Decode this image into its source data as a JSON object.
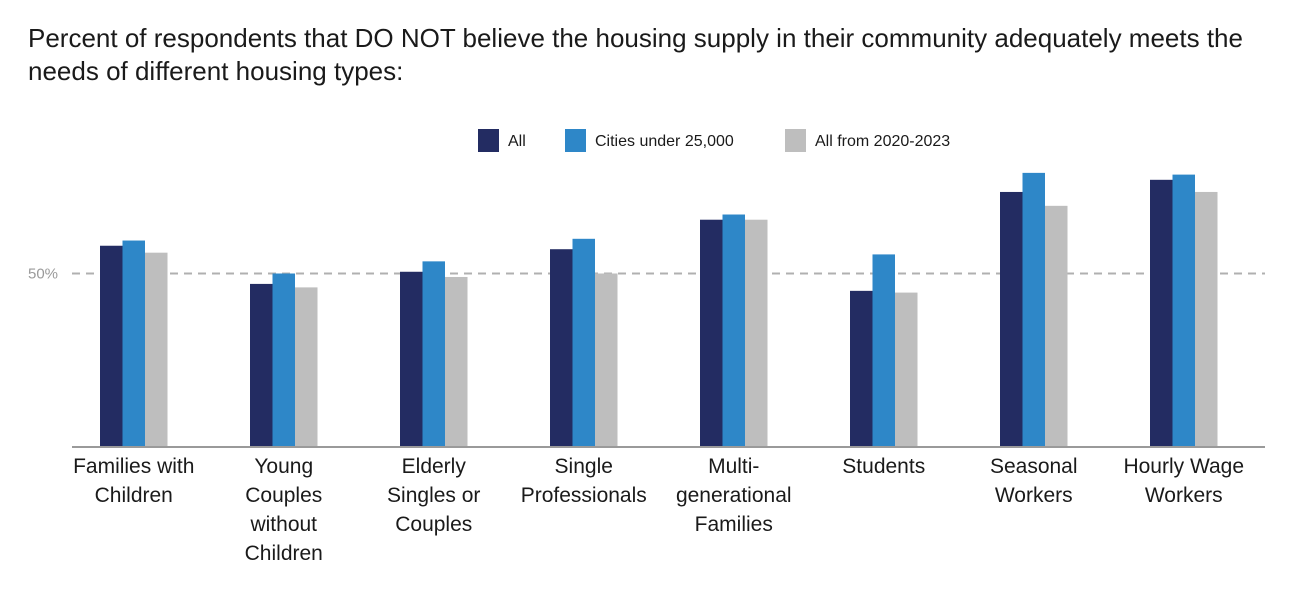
{
  "title": "Percent of respondents that DO NOT believe the housing supply in their community adequately meets the needs of different housing types:",
  "chart_data": {
    "type": "bar",
    "title": "Percent of respondents that DO NOT believe the housing supply in their community adequately meets the needs of different housing types:",
    "categories": [
      [
        "Families with",
        "Children"
      ],
      [
        "Young",
        "Couples",
        "without",
        "Children"
      ],
      [
        "Elderly",
        "Singles or",
        "Couples"
      ],
      [
        "Single",
        "Professionals"
      ],
      [
        "Multi-",
        "generational",
        "Families"
      ],
      [
        "Students"
      ],
      [
        "Seasonal",
        "Workers"
      ],
      [
        "Hourly Wage",
        "Workers"
      ]
    ],
    "series": [
      {
        "name": "All",
        "color": "#232c62",
        "values": [
          58,
          47,
          50.5,
          57,
          65.5,
          45,
          73.5,
          77
        ]
      },
      {
        "name": "Cities under 25,000",
        "color": "#2e87c8",
        "values": [
          59.5,
          50,
          53.5,
          60,
          67,
          55.5,
          79,
          78.5
        ]
      },
      {
        "name": "All from 2020-2023",
        "color": "#bebebe",
        "values": [
          56,
          46,
          49,
          50,
          65.5,
          44.5,
          69.5,
          73.5
        ]
      }
    ],
    "ylim": [
      0,
      100
    ],
    "reference_line": {
      "value": 50,
      "label": "50%",
      "color": "#b0b0b0",
      "style": "dashed"
    },
    "legend_position": "top-center",
    "grid": false
  }
}
